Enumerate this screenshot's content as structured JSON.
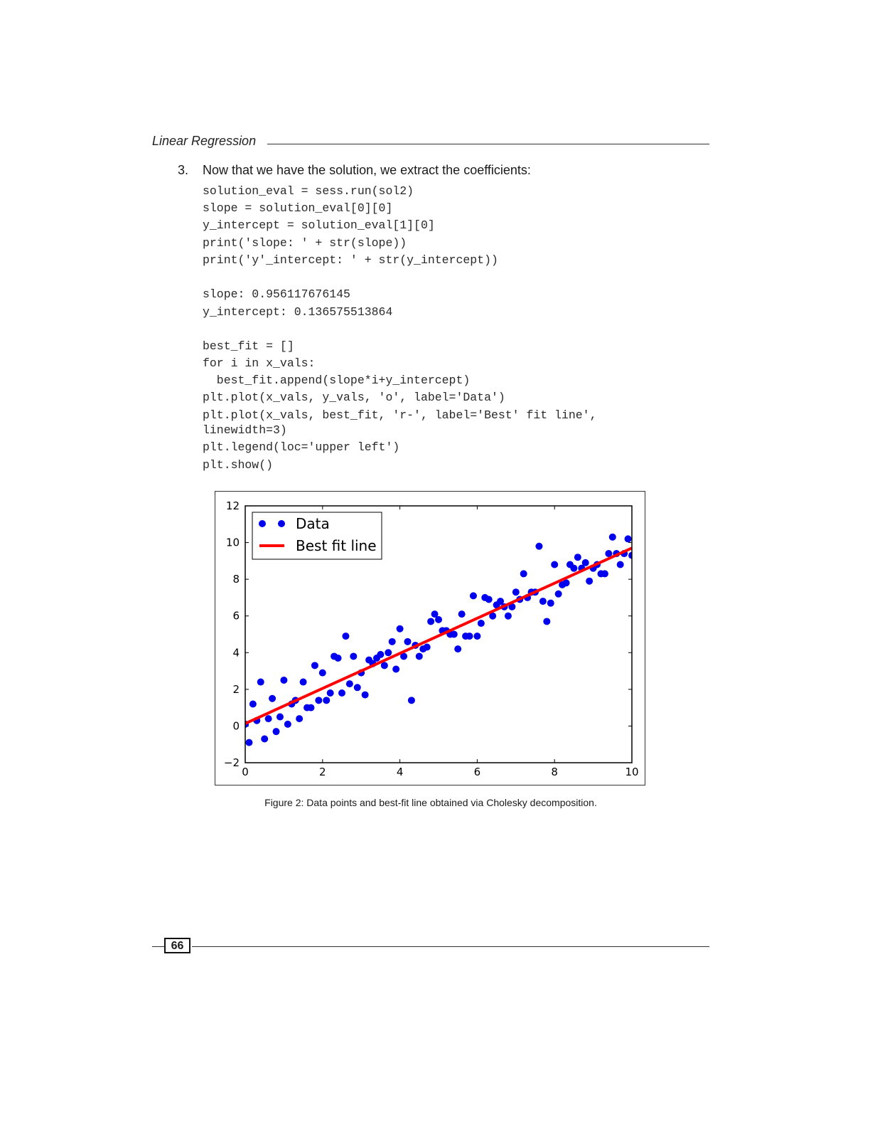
{
  "header": {
    "title": "Linear Regression"
  },
  "step": {
    "number": "3.",
    "text": "Now that we have the solution, we extract the coefficients:"
  },
  "code_lines": [
    "solution_eval = sess.run(sol2)",
    "slope = solution_eval[0][0]",
    "y_intercept = solution_eval[1][0]",
    "print('slope: ' + str(slope))",
    "print('y'_intercept: ' + str(y_intercept))",
    "slope: 0.956117676145",
    "y_intercept: 0.136575513864",
    "best_fit = []",
    "for i in x_vals:",
    "  best_fit.append(slope*i+y_intercept)",
    "plt.plot(x_vals, y_vals, 'o', label='Data')",
    "plt.plot(x_vals, best_fit, 'r-', label='Best' fit line',",
    "linewidth=3)",
    "plt.legend(loc='upper left')",
    "plt.show()"
  ],
  "caption": "Figure 2: Data points and best-fit line obtained via Cholesky decomposition.",
  "page_number": "66",
  "chart_data": {
    "type": "scatter",
    "xlim": [
      0,
      10
    ],
    "ylim": [
      -2,
      12
    ],
    "x_ticks": [
      "0",
      "2",
      "4",
      "6",
      "8",
      "10"
    ],
    "y_ticks": [
      "−2",
      "0",
      "2",
      "4",
      "6",
      "8",
      "10",
      "12"
    ],
    "grid": false,
    "legend_placement": "upper-left",
    "colors": {
      "data": "#0000ee",
      "fit": "#ff0000"
    },
    "series": [
      {
        "name": "Data",
        "marker": "o",
        "x": [
          0.0,
          0.1,
          0.2,
          0.3,
          0.4,
          0.5,
          0.6,
          0.7,
          0.8,
          0.9,
          1.0,
          1.1,
          1.2,
          1.3,
          1.4,
          1.5,
          1.6,
          1.7,
          1.8,
          1.9,
          2.0,
          2.1,
          2.2,
          2.3,
          2.4,
          2.5,
          2.6,
          2.7,
          2.8,
          2.9,
          3.0,
          3.1,
          3.2,
          3.3,
          3.4,
          3.5,
          3.6,
          3.7,
          3.8,
          3.9,
          4.0,
          4.1,
          4.2,
          4.3,
          4.4,
          4.5,
          4.6,
          4.7,
          4.8,
          4.9,
          5.0,
          5.1,
          5.2,
          5.3,
          5.4,
          5.5,
          5.6,
          5.7,
          5.8,
          5.9,
          6.0,
          6.1,
          6.2,
          6.3,
          6.4,
          6.5,
          6.6,
          6.7,
          6.8,
          6.9,
          7.0,
          7.1,
          7.2,
          7.3,
          7.4,
          7.5,
          7.6,
          7.7,
          7.8,
          7.9,
          8.0,
          8.1,
          8.2,
          8.3,
          8.4,
          8.5,
          8.6,
          8.7,
          8.8,
          8.9,
          9.0,
          9.1,
          9.2,
          9.3,
          9.4,
          9.5,
          9.6,
          9.7,
          9.8,
          9.9,
          10.0
        ],
        "y": [
          0.1,
          -0.9,
          1.2,
          0.3,
          2.4,
          -0.7,
          0.4,
          1.5,
          -0.3,
          0.5,
          2.5,
          0.1,
          1.2,
          1.4,
          0.4,
          2.4,
          1.0,
          1.0,
          3.3,
          1.4,
          2.9,
          1.4,
          1.8,
          3.8,
          3.7,
          1.8,
          4.9,
          2.3,
          3.8,
          2.1,
          2.9,
          1.7,
          3.6,
          3.4,
          3.7,
          3.9,
          3.3,
          4.0,
          4.6,
          3.1,
          5.3,
          3.8,
          4.6,
          1.4,
          4.4,
          3.8,
          4.2,
          4.3,
          5.7,
          6.1,
          5.8,
          5.2,
          5.2,
          5.0,
          5.0,
          4.2,
          6.1,
          4.9,
          4.9,
          7.1,
          4.9,
          5.6,
          7.0,
          6.9,
          6.0,
          6.6,
          6.8,
          6.5,
          6.0,
          6.5,
          7.3,
          6.9,
          8.3,
          7.0,
          7.3,
          7.3,
          9.8,
          6.8,
          5.7,
          6.7,
          8.8,
          7.2,
          7.7,
          7.8,
          8.8,
          8.6,
          9.2,
          8.6,
          8.9,
          7.9,
          8.6,
          8.8,
          8.3,
          8.3,
          9.4,
          10.3,
          9.4,
          8.8,
          9.4,
          10.2,
          9.3
        ]
      },
      {
        "name": "Best fit line",
        "line": "r-",
        "slope": 0.956117676145,
        "intercept": 0.136575513864,
        "x": [
          0,
          10
        ],
        "y": [
          0.136575513864,
          9.697752275314
        ]
      }
    ]
  }
}
